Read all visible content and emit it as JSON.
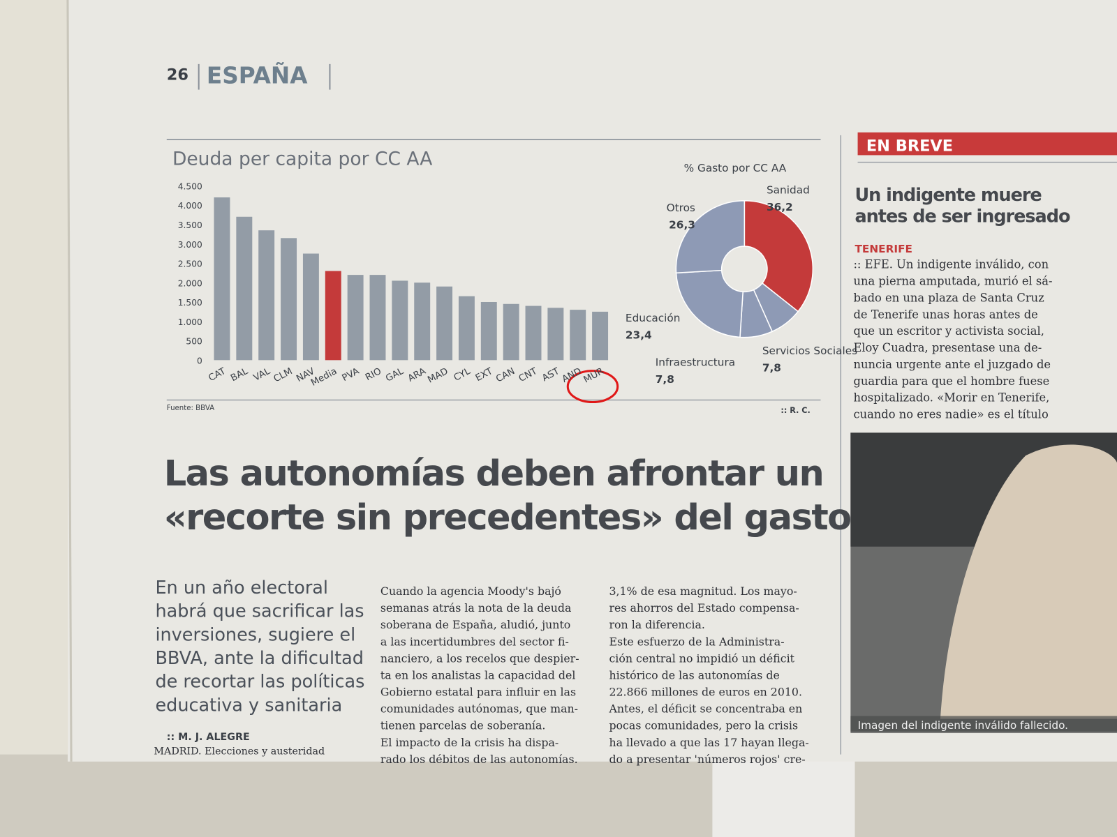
{
  "header": {
    "page": "26",
    "section": "ESPAÑA"
  },
  "chart_data": [
    {
      "type": "bar",
      "title": "Deuda per capita por CC AA",
      "categories": [
        "CAT",
        "BAL",
        "VAL",
        "CLM",
        "NAV",
        "Media",
        "PVA",
        "RIO",
        "GAL",
        "ARA",
        "MAD",
        "CYL",
        "EXT",
        "CAN",
        "CNT",
        "AST",
        "AND",
        "MUR"
      ],
      "values": [
        4200,
        3700,
        3350,
        3150,
        2750,
        2300,
        2200,
        2200,
        2050,
        2000,
        1900,
        1650,
        1500,
        1450,
        1400,
        1350,
        1300,
        1250
      ],
      "colors": [
        "#939ca6",
        "#939ca6",
        "#939ca6",
        "#939ca6",
        "#939ca6",
        "#c43a3a",
        "#939ca6",
        "#939ca6",
        "#939ca6",
        "#939ca6",
        "#939ca6",
        "#939ca6",
        "#939ca6",
        "#939ca6",
        "#939ca6",
        "#939ca6",
        "#939ca6",
        "#939ca6"
      ],
      "ylim": [
        0,
        4500
      ],
      "yticks": [
        0,
        500,
        {
          "value": 1000,
          "label": "1.000"
        },
        {
          "value": 1500,
          "label": "1.500"
        },
        {
          "value": 2000,
          "label": "2.000"
        },
        {
          "value": 2500,
          "label": "2.500"
        },
        {
          "value": 3000,
          "label": "3.000"
        },
        {
          "value": 3500,
          "label": "3.500"
        },
        {
          "value": 4000,
          "label": "4.000"
        },
        {
          "value": 4500,
          "label": "4.500"
        }
      ],
      "source": "Fuente: BBVA"
    },
    {
      "type": "pie",
      "title": "% Gasto por CC AA",
      "categories": [
        "Sanidad",
        "Servicios Sociales",
        "Infraestructura",
        "Educación",
        "Otros"
      ],
      "values": [
        36.2,
        7.8,
        7.8,
        23.4,
        26.3
      ],
      "value_labels": [
        "36,2",
        "7,8",
        "7,8",
        "23,4",
        "26,3"
      ],
      "colors": [
        "#c43a3a",
        "#8e9ab5",
        "#8e9ab5",
        "#8e9ab5",
        "#8e9ab5"
      ],
      "credit": ":: R. C."
    }
  ],
  "article": {
    "headline": [
      "Las autonomías deben afrontar un",
      "«recorte sin precedentes» del gasto"
    ],
    "subhead": [
      "En un año electoral",
      "habrá que sacrificar las",
      "inversiones, sugiere el",
      "BBVA, ante la dificultad",
      "de recortar las políticas",
      "educativa y sanitaria"
    ],
    "byline": ":: M. J. ALEGRE",
    "col1": [
      "MADRID. Elecciones y austeridad"
    ],
    "col2": [
      "Cuando la agencia Moody's bajó",
      "semanas atrás la nota de la deuda",
      "soberana de España, aludió, junto",
      "a las incertidumbres del sector fi-",
      "nanciero, a los recelos que despier-",
      "ta en los analistas la capacidad del",
      "Gobierno estatal para influir en las",
      "comunidades autónomas, que man-",
      "tienen parcelas de soberanía.",
      "El impacto de la crisis ha dispa-",
      "rado los débitos de las autonomías."
    ],
    "col3": [
      "3,1% de esa magnitud. Los mayo-",
      "res ahorros del Estado compensa-",
      "ron la diferencia.",
      "Este esfuerzo de la Administra-",
      "ción central no impidió un déficit",
      "histórico de las autonomías de",
      "22.866 millones de euros en 2010.",
      "Antes, el déficit se concentraba en",
      "pocas comunidades, pero la crisis",
      "ha llevado a que las 17 hayan llega-",
      "do a presentar 'números rojos' cre-"
    ]
  },
  "sidebar": {
    "label": "EN BREVE",
    "headline": [
      "Un indigente muere",
      "antes de ser ingresado"
    ],
    "place": "TENERIFE",
    "body": [
      ":: EFE. Un indigente inválido, con",
      "una pierna amputada, murió el sá-",
      "bado en una plaza de Santa Cruz",
      "de Tenerife unas horas antes de",
      "que un escritor y activista social,",
      "Eloy Cuadra, presentase una de-",
      "nuncia urgente ante el juzgado de",
      "guardia para que el hombre fuese",
      "hospitalizado. «Morir en Tenerife,",
      "cuando no eres nadie» es el título"
    ],
    "caption": "Imagen del indigente inválido fallecido."
  }
}
